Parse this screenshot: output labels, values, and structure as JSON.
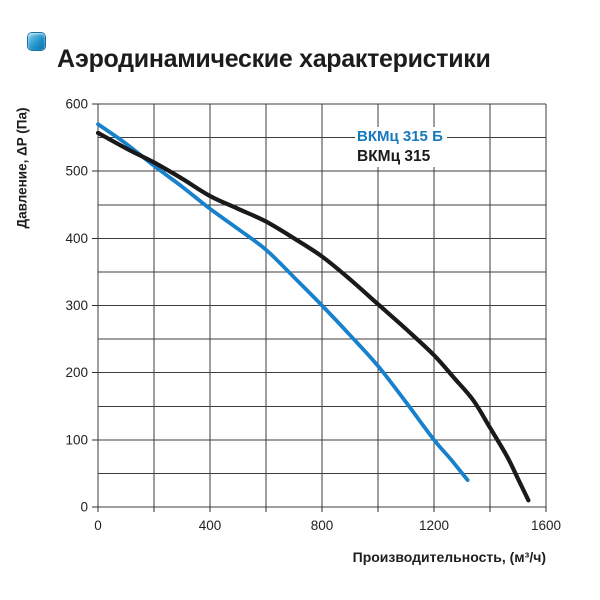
{
  "header": {
    "icon": "blue-rounded-square-bullet-icon",
    "title": "Аэродинамические характеристики"
  },
  "colors": {
    "background": "#ffffff",
    "grid": "#3d3d3d",
    "axis": "#2e2e2e",
    "tick_label": "#222222",
    "title_text": "#1c1c1c",
    "legend_blue": "#1779be",
    "legend_black": "#1b1b1b"
  },
  "chart_data": {
    "type": "line",
    "title": "Аэродинамические характеристики",
    "xlabel": "Производительность, (м³/ч)",
    "ylabel": "Давление, ΔP (Па)",
    "xlim": [
      0,
      1600
    ],
    "ylim": [
      0,
      600
    ],
    "x_grid_step": 200,
    "y_grid_step": 50,
    "x_tick_labels": [
      0,
      400,
      800,
      1200,
      1600
    ],
    "y_tick_labels": [
      0,
      100,
      200,
      300,
      400,
      500,
      600
    ],
    "grid": true,
    "legend_position": "inside-top-right",
    "series": [
      {
        "name": "ВКМц 315 Б",
        "color": "#1881cb",
        "points": [
          [
            0,
            570
          ],
          [
            100,
            541
          ],
          [
            200,
            508
          ],
          [
            300,
            477
          ],
          [
            400,
            444
          ],
          [
            500,
            414
          ],
          [
            600,
            383
          ],
          [
            700,
            342
          ],
          [
            800,
            300
          ],
          [
            900,
            256
          ],
          [
            1000,
            210
          ],
          [
            1100,
            156
          ],
          [
            1200,
            100
          ],
          [
            1260,
            71
          ],
          [
            1320,
            40
          ]
        ]
      },
      {
        "name": "ВКМц 315",
        "color": "#1a1a1a",
        "points": [
          [
            0,
            557
          ],
          [
            100,
            534
          ],
          [
            200,
            513
          ],
          [
            300,
            489
          ],
          [
            400,
            463
          ],
          [
            500,
            444
          ],
          [
            600,
            425
          ],
          [
            700,
            400
          ],
          [
            800,
            373
          ],
          [
            900,
            339
          ],
          [
            1000,
            302
          ],
          [
            1100,
            265
          ],
          [
            1200,
            226
          ],
          [
            1270,
            193
          ],
          [
            1340,
            159
          ],
          [
            1400,
            118
          ],
          [
            1460,
            76
          ],
          [
            1500,
            42
          ],
          [
            1537,
            10
          ]
        ]
      }
    ]
  }
}
